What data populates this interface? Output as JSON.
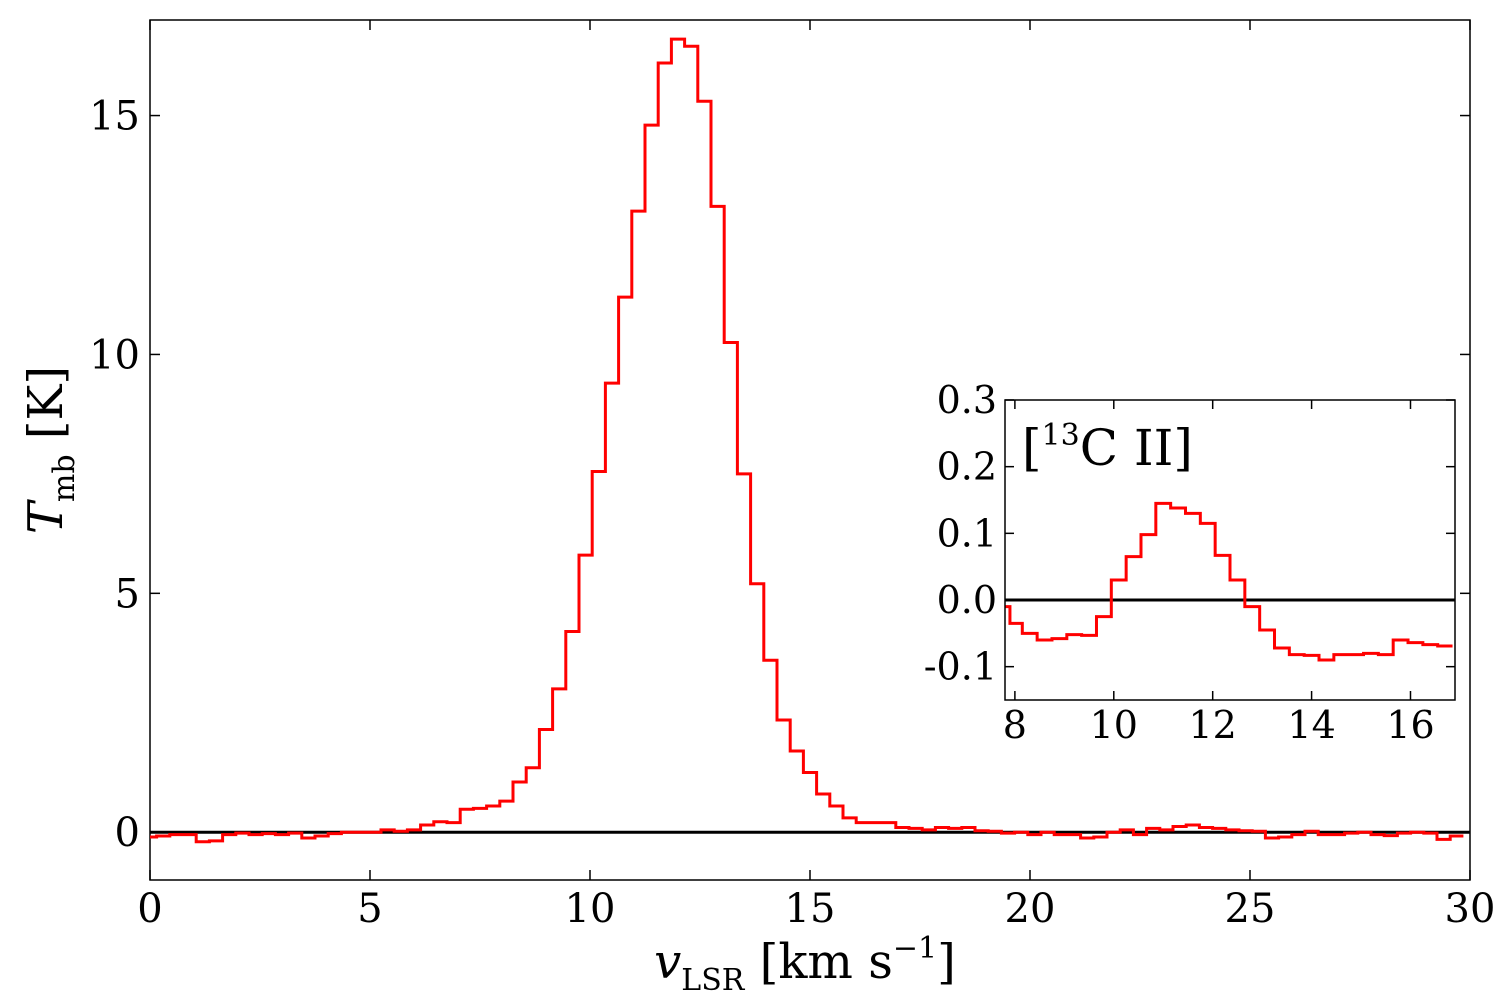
{
  "chart_data": [
    {
      "type": "line",
      "step": true,
      "xlabel": {
        "main": "v",
        "sub": "LSR",
        "units_open": " [km s",
        "units_exp": "−1",
        "units_close": "]"
      },
      "ylabel": {
        "main": "T",
        "sub": "mb",
        "units": " [K]"
      },
      "xlim": [
        0,
        30
      ],
      "ylim": [
        -1,
        17
      ],
      "xticks": [
        0,
        5,
        10,
        15,
        20,
        25,
        30
      ],
      "xtick_labels": [
        "0",
        "5",
        "10",
        "15",
        "20",
        "25",
        "30"
      ],
      "yticks": [
        0,
        5,
        10,
        15
      ],
      "ytick_labels": [
        "0",
        "5",
        "10",
        "15"
      ],
      "grid": false,
      "reference_line": 0,
      "colors": {
        "series": "#ff0000",
        "reference": "#000000"
      },
      "series": [
        {
          "x": [
            0,
            0.3,
            0.6,
            0.9,
            1.2,
            1.5,
            1.8,
            2.1,
            2.4,
            2.7,
            3.0,
            3.3,
            3.6,
            3.9,
            4.2,
            4.5,
            4.8,
            5.1,
            5.4,
            5.7,
            6.0,
            6.3,
            6.6,
            6.9,
            7.2,
            7.5,
            7.8,
            8.1,
            8.4,
            8.7,
            9.0,
            9.3,
            9.6,
            9.9,
            10.2,
            10.5,
            10.8,
            11.1,
            11.4,
            11.7,
            12.0,
            12.3,
            12.6,
            12.9,
            13.2,
            13.5,
            13.8,
            14.1,
            14.4,
            14.7,
            15.0,
            15.3,
            15.6,
            15.9,
            16.2,
            16.5,
            16.8,
            17.1,
            17.4,
            17.7,
            18.0,
            18.3,
            18.6,
            18.9,
            19.2,
            19.5,
            19.8,
            20.1,
            20.4,
            20.7,
            21.0,
            21.3,
            21.6,
            21.9,
            22.2,
            22.5,
            22.8,
            23.1,
            23.4,
            23.7,
            24.0,
            24.3,
            24.6,
            24.9,
            25.2,
            25.5,
            25.8,
            26.1,
            26.4,
            26.7,
            27.0,
            27.3,
            27.6,
            27.9,
            28.2,
            28.5,
            28.8,
            29.1,
            29.4,
            29.7
          ],
          "y": [
            -0.1,
            -0.08,
            -0.05,
            -0.05,
            -0.2,
            -0.18,
            -0.05,
            -0.02,
            -0.05,
            -0.03,
            -0.05,
            -0.02,
            -0.12,
            -0.08,
            -0.03,
            0.0,
            0.0,
            0.0,
            0.05,
            0.02,
            0.05,
            0.15,
            0.22,
            0.2,
            0.48,
            0.5,
            0.55,
            0.65,
            1.05,
            1.35,
            2.15,
            3.0,
            4.2,
            5.8,
            7.55,
            9.4,
            11.2,
            13.0,
            14.8,
            16.1,
            16.6,
            16.45,
            15.3,
            13.1,
            10.25,
            7.5,
            5.2,
            3.6,
            2.35,
            1.7,
            1.25,
            0.8,
            0.55,
            0.3,
            0.2,
            0.2,
            0.2,
            0.1,
            0.08,
            0.05,
            0.1,
            0.08,
            0.1,
            0.03,
            0.02,
            -0.02,
            0.0,
            -0.05,
            0.0,
            -0.05,
            -0.05,
            -0.12,
            -0.1,
            0.0,
            0.05,
            -0.05,
            0.08,
            0.05,
            0.12,
            0.15,
            0.1,
            0.08,
            0.05,
            0.03,
            0.02,
            -0.12,
            -0.1,
            -0.05,
            0.02,
            -0.05,
            -0.05,
            -0.02,
            0.0,
            -0.05,
            -0.07,
            -0.02,
            0.0,
            -0.02,
            -0.15,
            -0.08
          ]
        }
      ]
    },
    {
      "type": "line",
      "step": true,
      "inset": true,
      "title": {
        "open": "[",
        "sup": "13",
        "species": "C",
        "ion": " II",
        "close": "]"
      },
      "xlim": [
        7.8,
        16.9
      ],
      "ylim": [
        -0.15,
        0.3
      ],
      "xticks": [
        8,
        10,
        12,
        14,
        16
      ],
      "xtick_labels": [
        "8",
        "10",
        "12",
        "14",
        "16"
      ],
      "yticks": [
        -0.1,
        0.0,
        0.1,
        0.2,
        0.3
      ],
      "ytick_labels": [
        "-0.1",
        "0.0",
        "0.1",
        "0.2",
        "0.3"
      ],
      "grid": false,
      "reference_line": 0,
      "colors": {
        "series": "#ff0000",
        "reference": "#000000"
      },
      "series": [
        {
          "x": [
            7.8,
            8.0,
            8.3,
            8.6,
            8.9,
            9.2,
            9.5,
            9.8,
            10.1,
            10.4,
            10.7,
            11.0,
            11.3,
            11.6,
            11.9,
            12.2,
            12.5,
            12.8,
            13.1,
            13.4,
            13.7,
            14.0,
            14.3,
            14.6,
            14.9,
            15.2,
            15.5,
            15.8,
            16.1,
            16.4,
            16.7
          ],
          "y": [
            -0.01,
            -0.035,
            -0.05,
            -0.06,
            -0.058,
            -0.052,
            -0.053,
            -0.025,
            0.03,
            0.065,
            0.098,
            0.145,
            0.138,
            0.13,
            0.115,
            0.067,
            0.03,
            -0.01,
            -0.045,
            -0.072,
            -0.082,
            -0.083,
            -0.09,
            -0.082,
            -0.082,
            -0.08,
            -0.082,
            -0.06,
            -0.064,
            -0.067,
            -0.069
          ]
        }
      ]
    }
  ]
}
